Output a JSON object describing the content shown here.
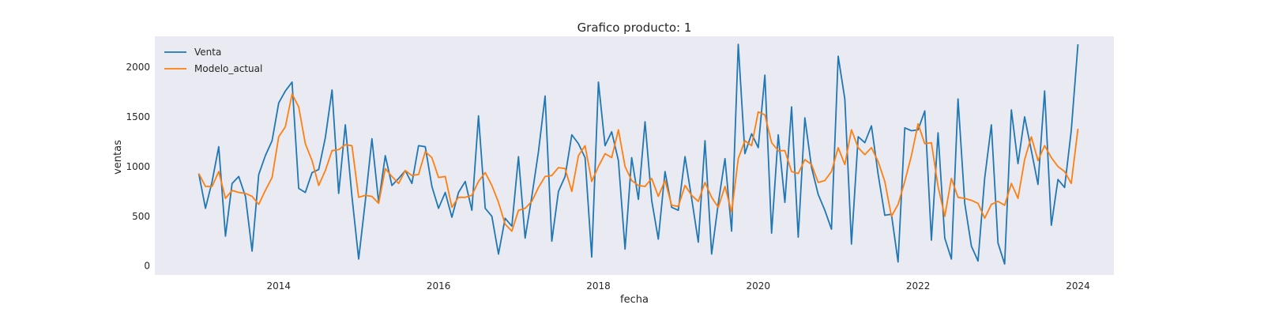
{
  "chart_data": {
    "type": "line",
    "title": "Grafico producto: 1",
    "xlabel": "fecha",
    "ylabel": "ventas",
    "x_start": "2013-01",
    "x_frequency": "monthly",
    "xlim": [
      2012.45,
      2024.45
    ],
    "ylim": [
      -90,
      2310
    ],
    "x_ticks": [
      2014,
      2016,
      2018,
      2020,
      2022,
      2024
    ],
    "y_ticks": [
      0,
      500,
      1000,
      1500,
      2000
    ],
    "grid": false,
    "legend_position": "top-left",
    "colors": {
      "background": "#eaeaf2",
      "Venta": "#1f77b4",
      "Modelo_actual": "#ff7f0e"
    },
    "series": [
      {
        "name": "Venta",
        "color": "#1f77b4",
        "values": [
          930,
          580,
          850,
          1200,
          300,
          830,
          900,
          700,
          150,
          920,
          1110,
          1260,
          1640,
          1760,
          1850,
          780,
          740,
          940,
          970,
          1290,
          1770,
          730,
          1420,
          700,
          70,
          650,
          1280,
          640,
          1110,
          810,
          880,
          960,
          830,
          1210,
          1200,
          800,
          580,
          740,
          490,
          740,
          850,
          560,
          1510,
          580,
          500,
          120,
          480,
          400,
          1100,
          280,
          700,
          1150,
          1710,
          250,
          750,
          900,
          1320,
          1230,
          1090,
          90,
          1850,
          1210,
          1350,
          1060,
          170,
          1090,
          670,
          1450,
          660,
          270,
          950,
          590,
          560,
          1100,
          680,
          240,
          1260,
          120,
          630,
          1080,
          350,
          2230,
          1130,
          1330,
          1190,
          1920,
          330,
          1320,
          640,
          1600,
          290,
          1490,
          990,
          720,
          560,
          370,
          2110,
          1680,
          220,
          1300,
          1240,
          1410,
          920,
          510,
          520,
          40,
          1390,
          1360,
          1370,
          1560,
          260,
          1340,
          280,
          70,
          1680,
          630,
          200,
          50,
          880,
          1420,
          230,
          20,
          1570,
          1030,
          1500,
          1160,
          820,
          1760,
          410,
          870,
          790,
          1360,
          2230
        ]
      },
      {
        "name": "Modelo_actual",
        "color": "#ff7f0e",
        "values": [
          930,
          800,
          800,
          950,
          680,
          760,
          740,
          730,
          700,
          620,
          760,
          890,
          1300,
          1400,
          1730,
          1600,
          1230,
          1060,
          810,
          960,
          1160,
          1170,
          1220,
          1210,
          690,
          710,
          700,
          630,
          980,
          900,
          830,
          960,
          910,
          920,
          1150,
          1090,
          890,
          900,
          590,
          690,
          690,
          710,
          850,
          940,
          810,
          640,
          420,
          350,
          560,
          580,
          650,
          790,
          900,
          910,
          990,
          980,
          750,
          1110,
          1210,
          850,
          1000,
          1130,
          1090,
          1370,
          1000,
          860,
          810,
          800,
          880,
          700,
          860,
          610,
          600,
          810,
          710,
          650,
          840,
          690,
          590,
          800,
          540,
          1080,
          1260,
          1210,
          1550,
          1520,
          1240,
          1160,
          1160,
          950,
          930,
          1070,
          1020,
          840,
          860,
          950,
          1190,
          1020,
          1370,
          1190,
          1120,
          1190,
          1050,
          850,
          500,
          620,
          850,
          1110,
          1430,
          1230,
          1240,
          800,
          500,
          880,
          690,
          680,
          660,
          630,
          480,
          620,
          650,
          610,
          830,
          680,
          1070,
          1300,
          1060,
          1210,
          1090,
          1000,
          950,
          830,
          1380
        ]
      }
    ]
  }
}
